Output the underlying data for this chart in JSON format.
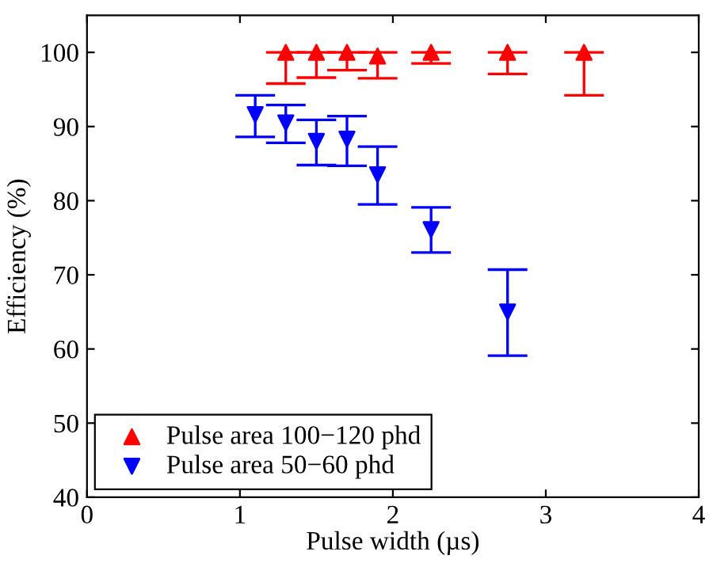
{
  "chart_data": {
    "type": "scatter",
    "xlabel": "Pulse width (µs)",
    "ylabel": "Efficiency (%)",
    "xlim": [
      0,
      4
    ],
    "ylim": [
      40,
      105
    ],
    "xticks": [
      0,
      1,
      2,
      3,
      4
    ],
    "yticks": [
      40,
      50,
      60,
      70,
      80,
      90,
      100
    ],
    "grid": false,
    "legend": "bottom left",
    "series": [
      {
        "name": "Pulse area 100−120 phd",
        "color": "#ff0000",
        "marker": "triangle",
        "x": [
          1.3,
          1.5,
          1.7,
          1.9,
          2.25,
          2.75,
          3.25
        ],
        "values": [
          100,
          100,
          100,
          99.5,
          100,
          100,
          100
        ],
        "errors": [
          [
            95.8,
            100
          ],
          [
            96.6,
            100
          ],
          [
            97.6,
            100
          ],
          [
            96.5,
            100
          ],
          [
            98.5,
            100
          ],
          [
            97.1,
            100
          ],
          [
            94.2,
            100
          ]
        ]
      },
      {
        "name": "Pulse area 50−60 phd",
        "color": "#0000ff",
        "marker": "triangle_down",
        "x": [
          1.1,
          1.3,
          1.5,
          1.7,
          1.9,
          2.25,
          2.75
        ],
        "values": [
          91.6,
          90.5,
          88,
          88.3,
          83.5,
          76.1,
          65
        ],
        "errors": [
          [
            88.6,
            94.2
          ],
          [
            87.8,
            92.9
          ],
          [
            84.8,
            90.9
          ],
          [
            84.7,
            91.4
          ],
          [
            79.5,
            87.3
          ],
          [
            73,
            79.1
          ],
          [
            59.1,
            70.7
          ]
        ]
      }
    ]
  }
}
